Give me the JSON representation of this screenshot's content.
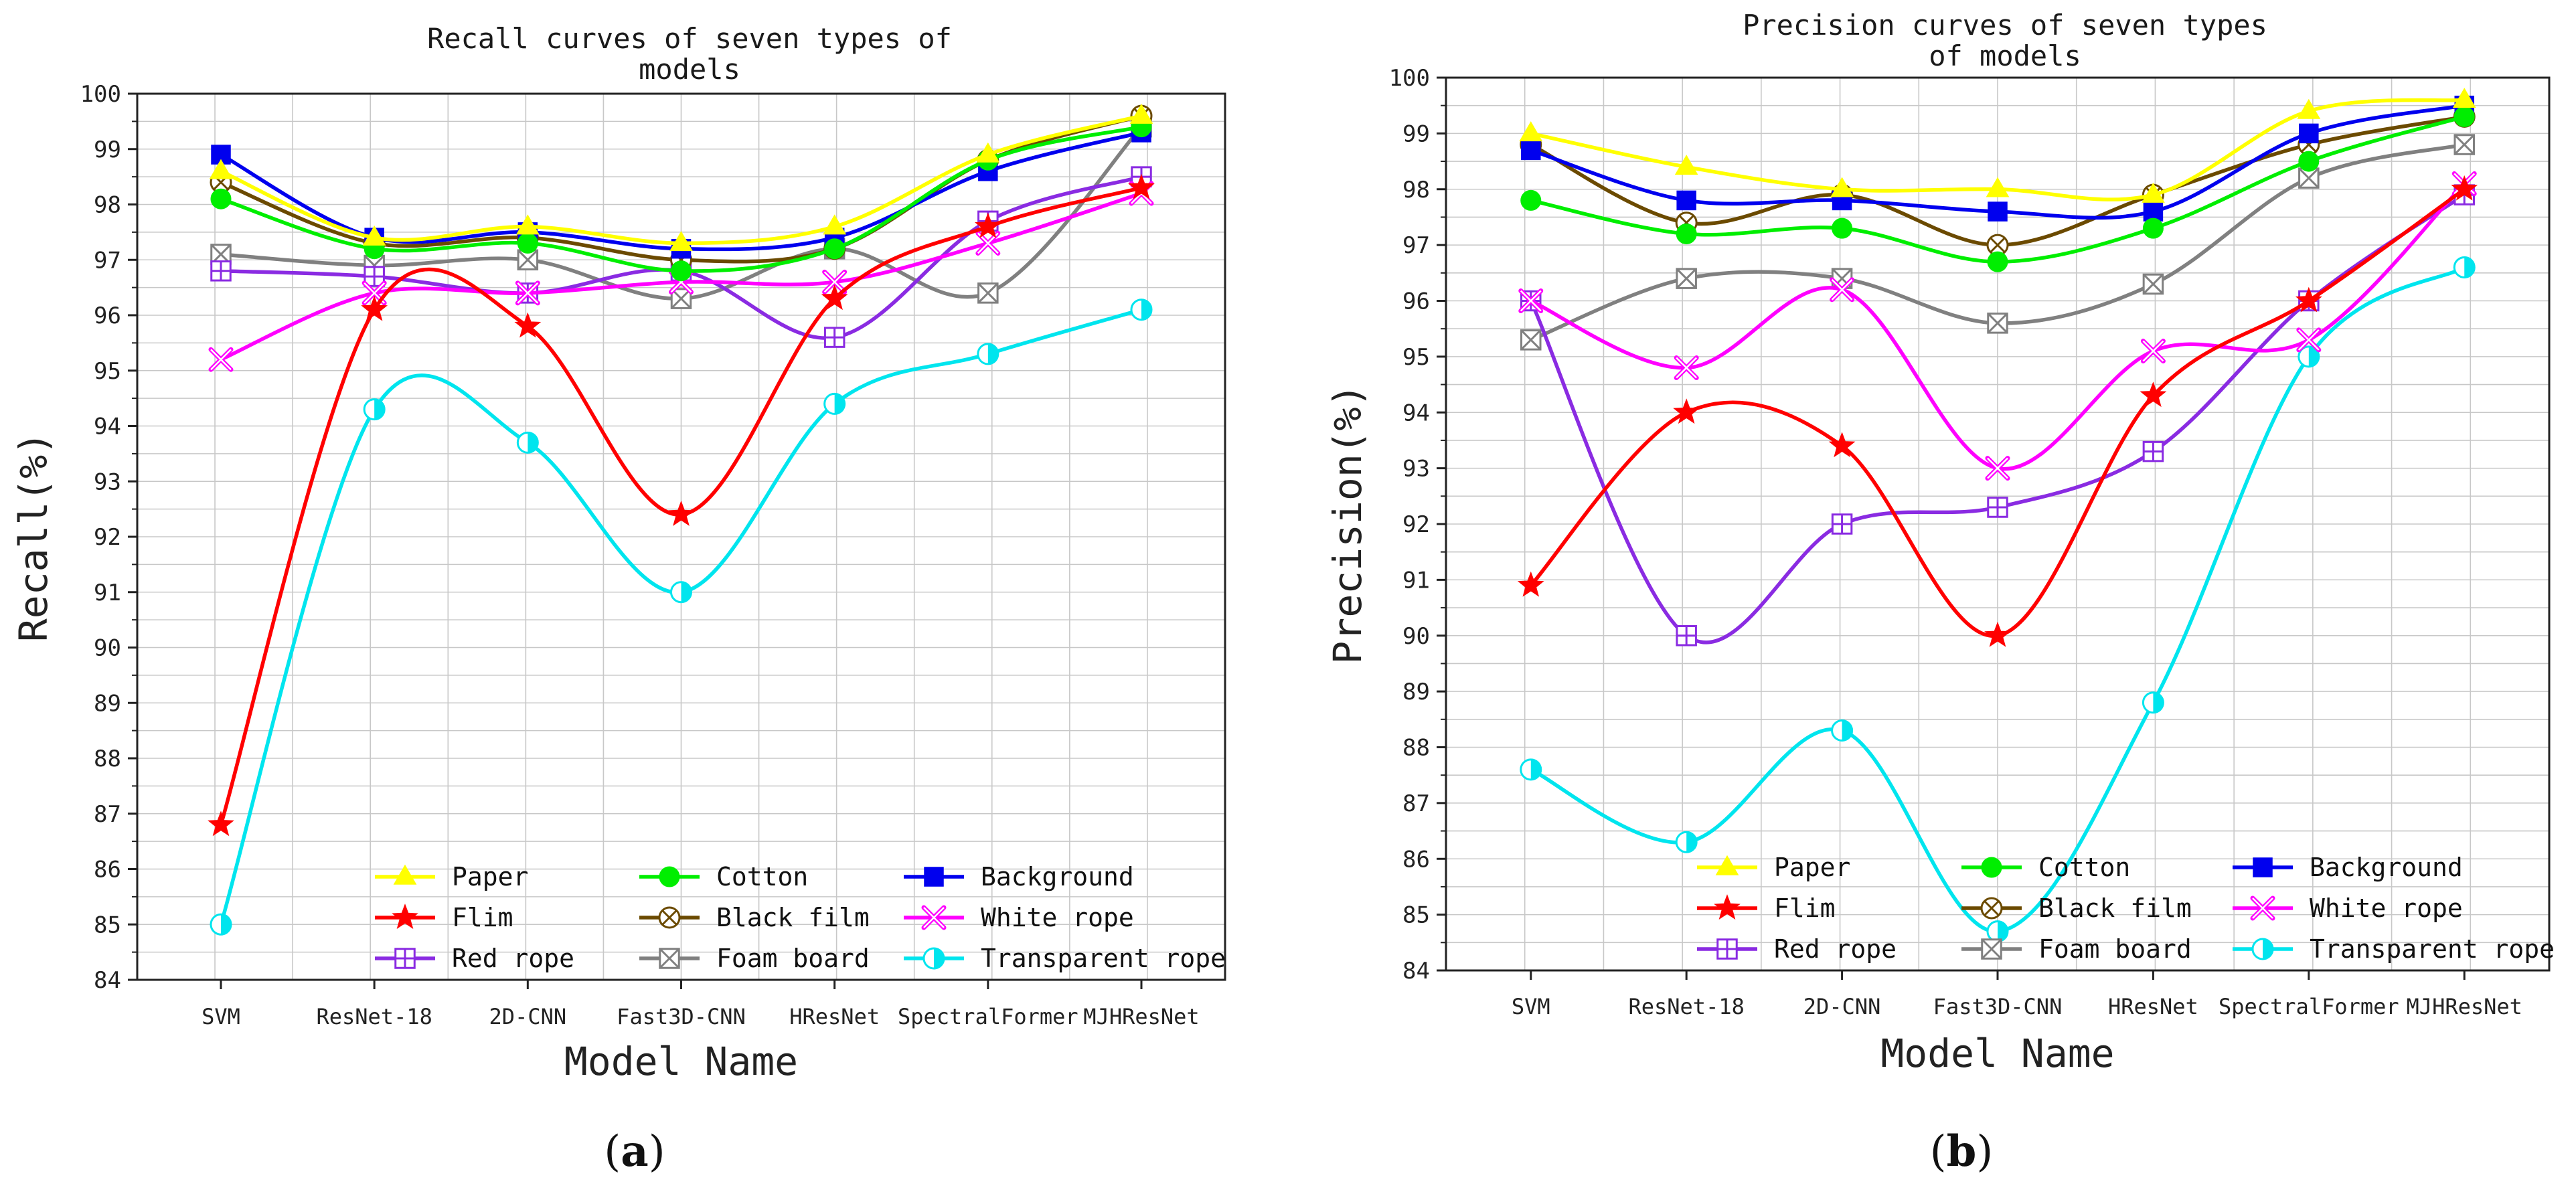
{
  "panel_labels": {
    "a": "a",
    "b": "b"
  },
  "chart_data": [
    {
      "type": "line",
      "id": "a",
      "title_lines": [
        "Recall curves of seven types of",
        "models"
      ],
      "xlabel": "Model Name",
      "ylabel": "Recall(%)",
      "ylim": [
        84,
        100
      ],
      "yticks": [
        84,
        85,
        86,
        87,
        88,
        89,
        90,
        91,
        92,
        93,
        94,
        95,
        96,
        97,
        98,
        99,
        100
      ],
      "categories": [
        "SVM",
        "ResNet-18",
        "2D-CNN",
        "Fast3D-CNN",
        "HResNet",
        "SpectralFormer",
        "MJHResNet"
      ],
      "grid": true,
      "legend_position": "bottom",
      "series": [
        {
          "name": "Paper",
          "color": "#ffff00",
          "marker": "triangle",
          "values": [
            98.6,
            97.4,
            97.6,
            97.3,
            97.6,
            98.9,
            99.6
          ]
        },
        {
          "name": "Cotton",
          "color": "#00ee00",
          "marker": "circle",
          "values": [
            98.1,
            97.2,
            97.3,
            96.8,
            97.2,
            98.8,
            99.4
          ]
        },
        {
          "name": "Background",
          "color": "#0000ee",
          "marker": "square",
          "values": [
            98.9,
            97.4,
            97.5,
            97.2,
            97.4,
            98.6,
            99.3
          ]
        },
        {
          "name": "Flim",
          "color": "#ff0000",
          "marker": "star",
          "values": [
            86.8,
            96.1,
            95.8,
            92.4,
            96.3,
            97.6,
            98.3
          ]
        },
        {
          "name": "Black film",
          "color": "#6b4a00",
          "marker": "circle-x",
          "values": [
            98.4,
            97.3,
            97.4,
            97.0,
            97.2,
            98.8,
            99.6
          ]
        },
        {
          "name": "White rope",
          "color": "#ff00ff",
          "marker": "x",
          "values": [
            95.2,
            96.4,
            96.4,
            96.6,
            96.6,
            97.3,
            98.2
          ]
        },
        {
          "name": "Red rope",
          "color": "#8a2be2",
          "marker": "square-plus",
          "values": [
            96.8,
            96.7,
            96.4,
            96.8,
            95.6,
            97.7,
            98.5
          ]
        },
        {
          "name": "Foam board",
          "color": "#808080",
          "marker": "square-x",
          "values": [
            97.1,
            96.9,
            97.0,
            96.3,
            97.2,
            96.4,
            99.4
          ]
        },
        {
          "name": "Transparent rope",
          "color": "#00e5ee",
          "marker": "half-circle",
          "values": [
            85.0,
            94.3,
            93.7,
            91.0,
            94.4,
            95.3,
            96.1
          ]
        }
      ]
    },
    {
      "type": "line",
      "id": "b",
      "title_lines": [
        "Precision curves of seven types",
        "of models"
      ],
      "xlabel": "Model Name",
      "ylabel": "Precision(%)",
      "ylim": [
        84,
        100
      ],
      "yticks": [
        84,
        85,
        86,
        87,
        88,
        89,
        90,
        91,
        92,
        93,
        94,
        95,
        96,
        97,
        98,
        99,
        100
      ],
      "categories": [
        "SVM",
        "ResNet-18",
        "2D-CNN",
        "Fast3D-CNN",
        "HResNet",
        "SpectralFormer",
        "MJHResNet"
      ],
      "grid": true,
      "legend_position": "bottom",
      "series": [
        {
          "name": "Paper",
          "color": "#ffff00",
          "marker": "triangle",
          "values": [
            99.0,
            98.4,
            98.0,
            98.0,
            97.9,
            99.4,
            99.6
          ]
        },
        {
          "name": "Cotton",
          "color": "#00ee00",
          "marker": "circle",
          "values": [
            97.8,
            97.2,
            97.3,
            96.7,
            97.3,
            98.5,
            99.3
          ]
        },
        {
          "name": "Background",
          "color": "#0000ee",
          "marker": "square",
          "values": [
            98.7,
            97.8,
            97.8,
            97.6,
            97.6,
            99.0,
            99.5
          ]
        },
        {
          "name": "Flim",
          "color": "#ff0000",
          "marker": "star",
          "values": [
            90.9,
            94.0,
            93.4,
            90.0,
            94.3,
            96.0,
            98.0
          ]
        },
        {
          "name": "Black film",
          "color": "#6b4a00",
          "marker": "circle-x",
          "values": [
            98.8,
            97.4,
            97.9,
            97.0,
            97.9,
            98.8,
            99.3
          ]
        },
        {
          "name": "White rope",
          "color": "#ff00ff",
          "marker": "x",
          "values": [
            96.0,
            94.8,
            96.2,
            93.0,
            95.1,
            95.3,
            98.1
          ]
        },
        {
          "name": "Red rope",
          "color": "#8a2be2",
          "marker": "square-plus",
          "values": [
            96.0,
            90.0,
            92.0,
            92.3,
            93.3,
            96.0,
            97.9
          ]
        },
        {
          "name": "Foam board",
          "color": "#808080",
          "marker": "square-x",
          "values": [
            95.3,
            96.4,
            96.4,
            95.6,
            96.3,
            98.2,
            98.8
          ]
        },
        {
          "name": "Transparent rope",
          "color": "#00e5ee",
          "marker": "half-circle",
          "values": [
            87.6,
            86.3,
            88.3,
            84.7,
            88.8,
            95.0,
            96.6
          ]
        }
      ]
    }
  ]
}
